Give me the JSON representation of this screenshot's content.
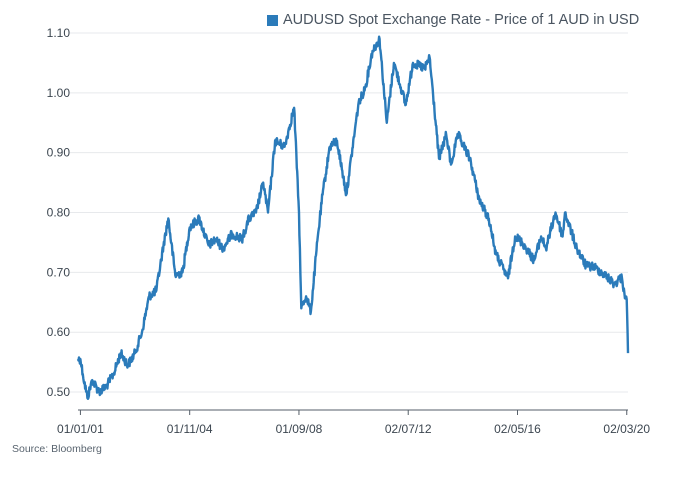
{
  "chart_data": {
    "type": "line",
    "title": "",
    "xlabel": "",
    "ylabel": "",
    "legend": "top",
    "series": [
      {
        "name": "AUDUSD Spot Exchange Rate - Price of 1 AUD in USD",
        "color": "#2b7bba",
        "points": [
          [
            "2000-12-01",
            0.555
          ],
          [
            "2001-01-01",
            0.555
          ],
          [
            "2001-02-01",
            0.53
          ],
          [
            "2001-04-01",
            0.49
          ],
          [
            "2001-06-01",
            0.52
          ],
          [
            "2001-09-01",
            0.5
          ],
          [
            "2001-12-01",
            0.51
          ],
          [
            "2002-03-01",
            0.53
          ],
          [
            "2002-06-01",
            0.565
          ],
          [
            "2002-09-01",
            0.545
          ],
          [
            "2002-12-01",
            0.565
          ],
          [
            "2003-03-01",
            0.6
          ],
          [
            "2003-06-01",
            0.66
          ],
          [
            "2003-09-01",
            0.67
          ],
          [
            "2003-12-01",
            0.745
          ],
          [
            "2004-02-01",
            0.79
          ],
          [
            "2004-05-01",
            0.695
          ],
          [
            "2004-08-01",
            0.7
          ],
          [
            "2004-11-01",
            0.775
          ],
          [
            "2005-03-01",
            0.79
          ],
          [
            "2005-07-01",
            0.745
          ],
          [
            "2005-10-01",
            0.755
          ],
          [
            "2006-01-01",
            0.74
          ],
          [
            "2006-05-01",
            0.765
          ],
          [
            "2006-09-01",
            0.755
          ],
          [
            "2006-12-01",
            0.79
          ],
          [
            "2007-03-01",
            0.8
          ],
          [
            "2007-06-01",
            0.85
          ],
          [
            "2007-08-01",
            0.8
          ],
          [
            "2007-11-01",
            0.92
          ],
          [
            "2008-03-01",
            0.91
          ],
          [
            "2008-07-01",
            0.975
          ],
          [
            "2008-09-01",
            0.8
          ],
          [
            "2008-10-01",
            0.64
          ],
          [
            "2008-12-01",
            0.66
          ],
          [
            "2009-02-01",
            0.635
          ],
          [
            "2009-05-01",
            0.76
          ],
          [
            "2009-07-01",
            0.83
          ],
          [
            "2009-10-01",
            0.91
          ],
          [
            "2010-01-01",
            0.92
          ],
          [
            "2010-05-01",
            0.83
          ],
          [
            "2010-06-01",
            0.86
          ],
          [
            "2010-10-01",
            0.98
          ],
          [
            "2011-01-01",
            1.01
          ],
          [
            "2011-04-01",
            1.07
          ],
          [
            "2011-07-01",
            1.09
          ],
          [
            "2011-10-01",
            0.95
          ],
          [
            "2012-01-01",
            1.05
          ],
          [
            "2012-06-01",
            0.98
          ],
          [
            "2012-09-01",
            1.05
          ],
          [
            "2013-02-01",
            1.04
          ],
          [
            "2013-04-01",
            1.06
          ],
          [
            "2013-08-01",
            0.89
          ],
          [
            "2013-11-01",
            0.93
          ],
          [
            "2014-01-01",
            0.88
          ],
          [
            "2014-04-01",
            0.93
          ],
          [
            "2014-09-01",
            0.89
          ],
          [
            "2015-01-01",
            0.82
          ],
          [
            "2015-05-01",
            0.79
          ],
          [
            "2015-08-01",
            0.73
          ],
          [
            "2016-01-01",
            0.69
          ],
          [
            "2016-04-01",
            0.76
          ],
          [
            "2016-07-01",
            0.75
          ],
          [
            "2016-12-01",
            0.72
          ],
          [
            "2017-03-01",
            0.76
          ],
          [
            "2017-05-01",
            0.74
          ],
          [
            "2017-09-01",
            0.8
          ],
          [
            "2017-12-01",
            0.76
          ],
          [
            "2018-01-01",
            0.8
          ],
          [
            "2018-06-01",
            0.74
          ],
          [
            "2018-10-01",
            0.71
          ],
          [
            "2019-01-01",
            0.71
          ],
          [
            "2019-06-01",
            0.695
          ],
          [
            "2019-10-01",
            0.68
          ],
          [
            "2019-12-01",
            0.69
          ],
          [
            "2020-01-01",
            0.69
          ],
          [
            "2020-02-01",
            0.665
          ],
          [
            "2020-03-01",
            0.655
          ],
          [
            "2020-03-18",
            0.565
          ]
        ]
      }
    ],
    "ylim": [
      0.47,
      1.105
    ],
    "yticks": [
      "0.50",
      "0.60",
      "0.70",
      "0.80",
      "0.90",
      "1.00",
      "1.10"
    ],
    "xlim": [
      "2000-12-01",
      "2020-03-18"
    ],
    "xticks": [
      {
        "date": "2001-01-01",
        "label": "01/01/01"
      },
      {
        "date": "2004-11-01",
        "label": "01/11/04"
      },
      {
        "date": "2008-09-01",
        "label": "01/09/08"
      },
      {
        "date": "2012-07-02",
        "label": "02/07/12"
      },
      {
        "date": "2016-05-02",
        "label": "02/05/16"
      },
      {
        "date": "2020-03-02",
        "label": "02/03/20"
      }
    ],
    "grid": "horizontal",
    "source": "Source: Bloomberg"
  }
}
